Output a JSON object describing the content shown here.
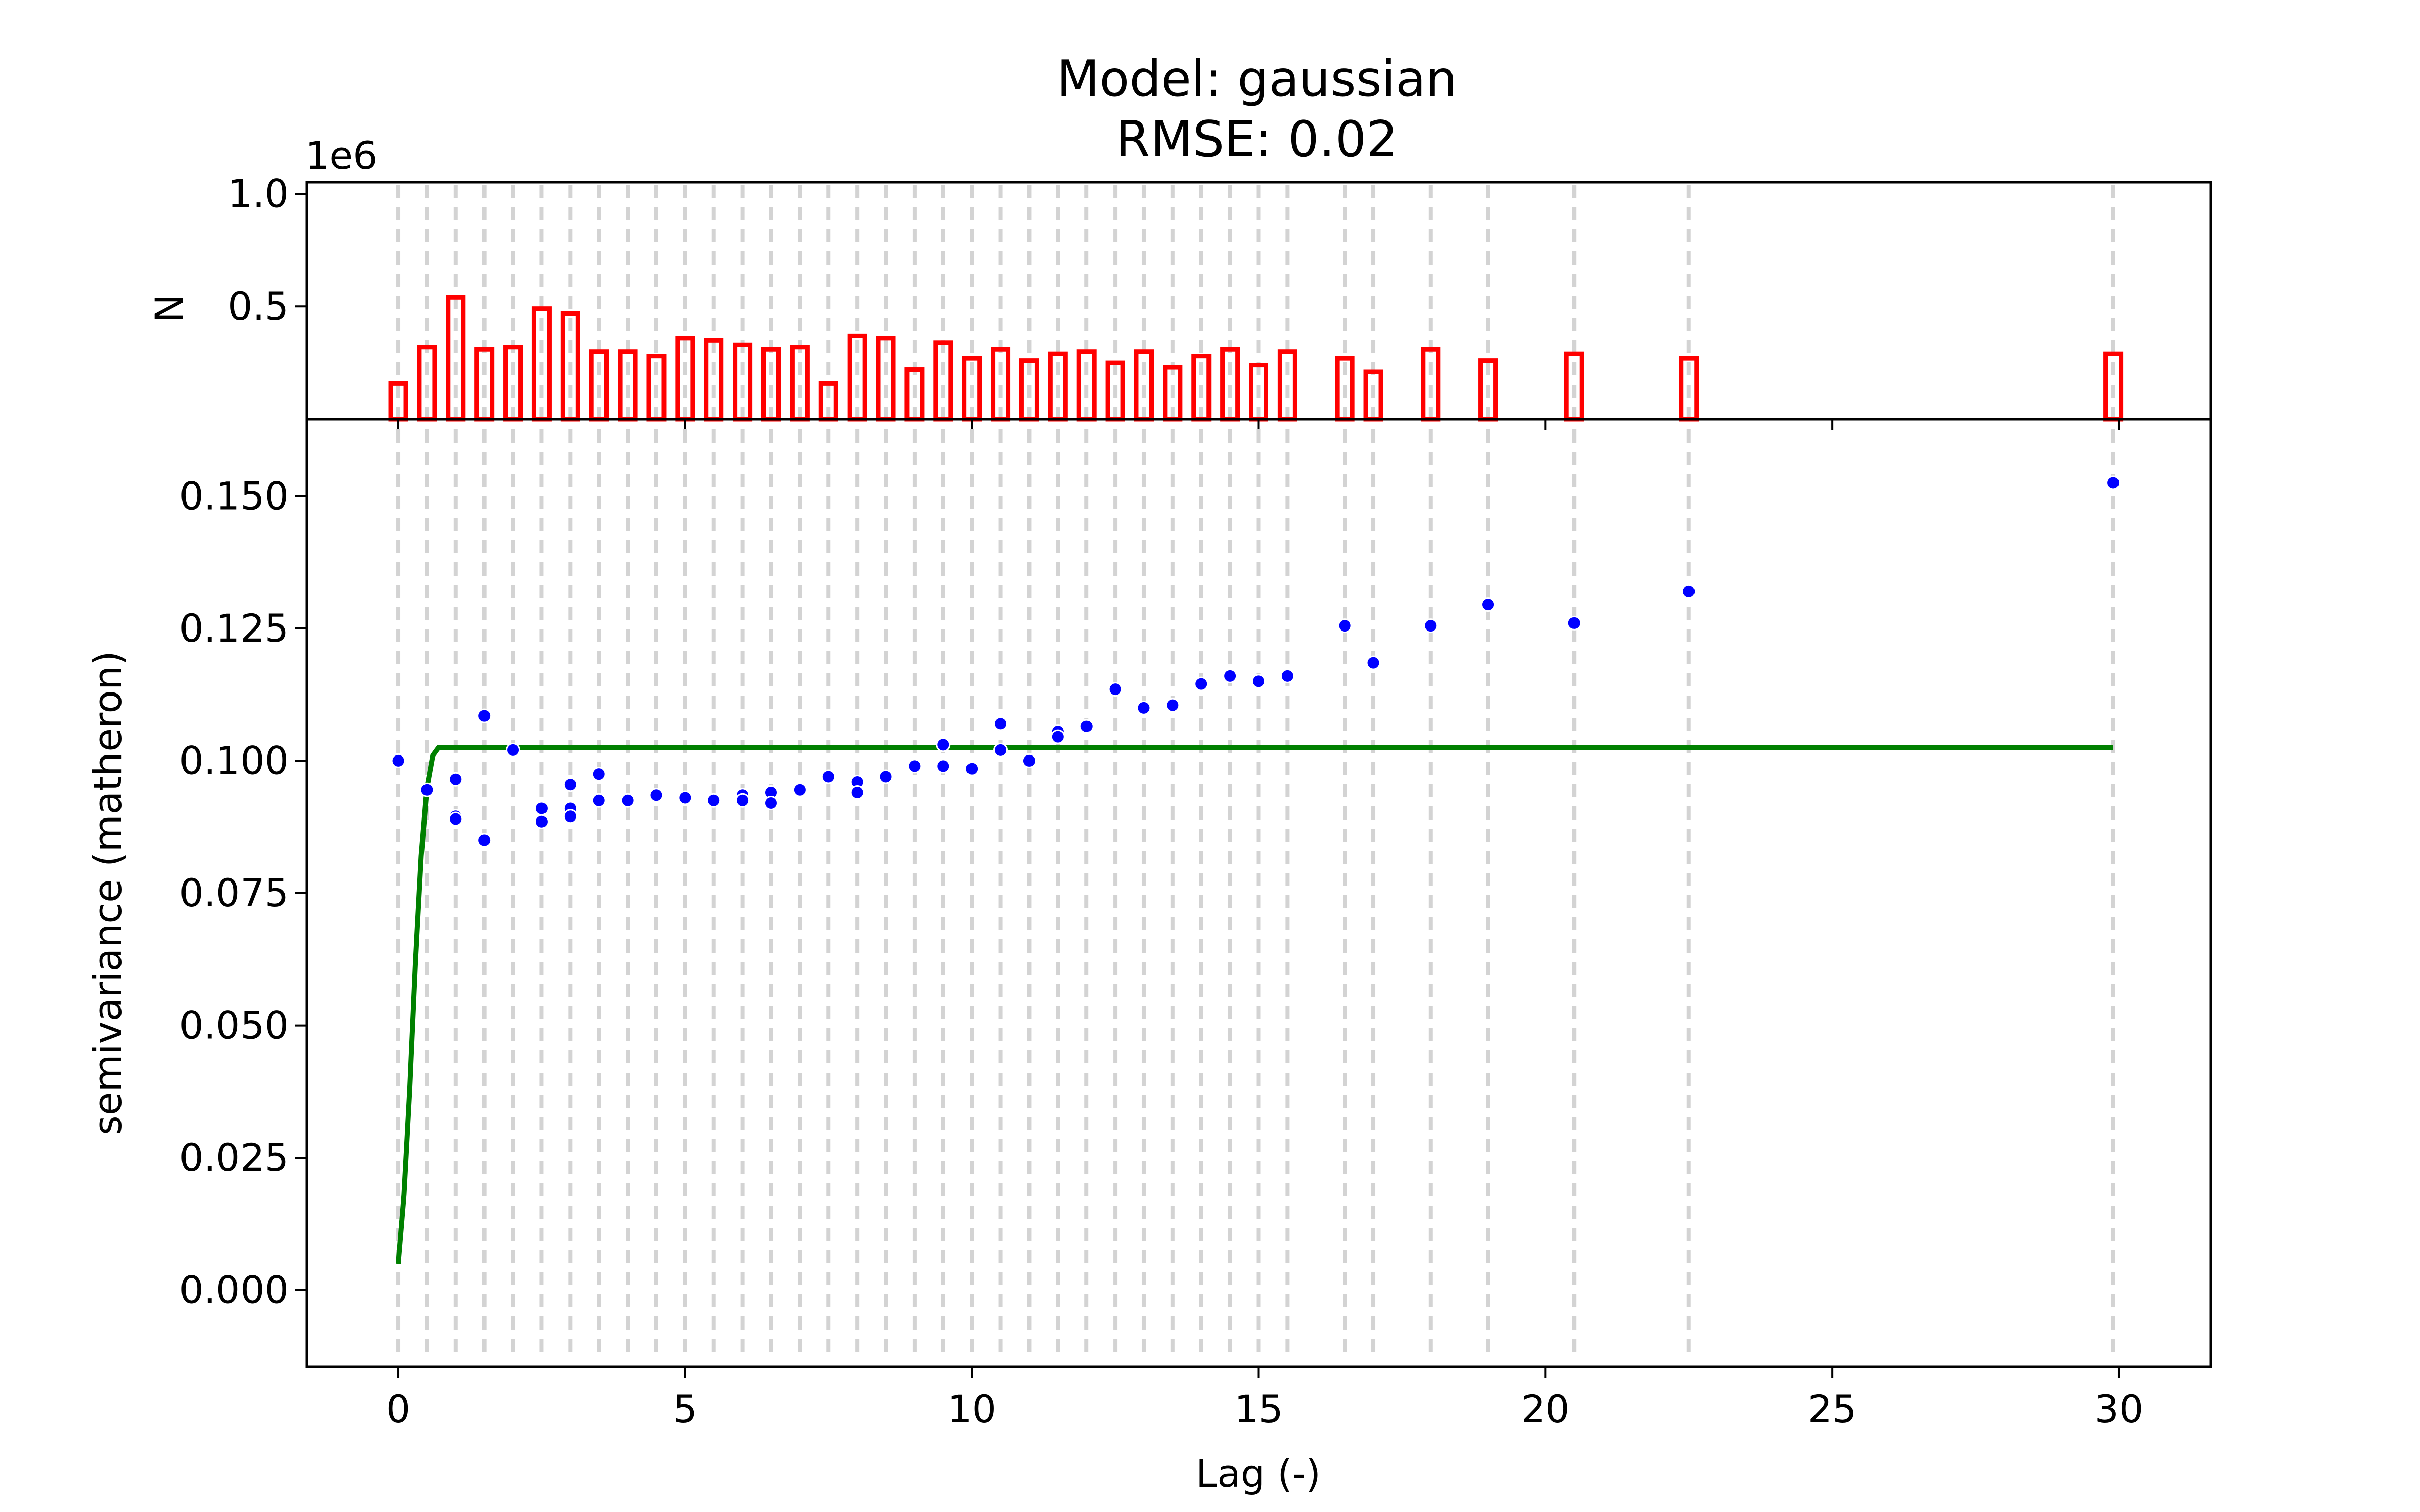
{
  "chart_data": {
    "type": "scatter",
    "title": "Model: gaussian",
    "subtitle": "RMSE: 0.02",
    "xlabel": "Lag (-)",
    "xlim": [
      -1.6,
      31.6
    ],
    "xticks": [
      0,
      5,
      10,
      15,
      20,
      25,
      30
    ],
    "histogram": {
      "ylabel": "N",
      "scale_label": "1e6",
      "ylim": [
        0,
        1.05
      ],
      "yticks": [
        0.5,
        1.0
      ],
      "bar_color": "#ff0000",
      "bins": [
        0.0,
        0.5,
        1.0,
        1.5,
        2.0,
        2.5,
        3.0,
        3.5,
        4.0,
        4.5,
        5.0,
        5.5,
        6.0,
        6.5,
        7.0,
        7.5,
        8.0,
        8.5,
        9.0,
        9.5,
        10.0,
        10.5,
        11.0,
        11.5,
        12.0,
        12.5,
        13.0,
        13.5,
        14.0,
        14.5,
        15.0,
        15.5,
        16.5,
        17.0,
        18.0,
        19.0,
        20.5,
        22.5,
        29.9
      ],
      "counts": [
        0.16,
        0.32,
        0.54,
        0.31,
        0.32,
        0.49,
        0.47,
        0.3,
        0.3,
        0.28,
        0.36,
        0.35,
        0.33,
        0.31,
        0.32,
        0.16,
        0.37,
        0.36,
        0.22,
        0.34,
        0.27,
        0.31,
        0.26,
        0.29,
        0.3,
        0.25,
        0.3,
        0.23,
        0.28,
        0.31,
        0.24,
        0.3,
        0.27,
        0.21,
        0.31,
        0.26,
        0.29,
        0.27,
        0.29
      ]
    },
    "variogram": {
      "ylabel": "semivariance (matheron)",
      "ylim": [
        -0.0145,
        0.1645
      ],
      "yticks": [
        0.0,
        0.025,
        0.05,
        0.075,
        0.1,
        0.125,
        0.15
      ],
      "ytick_labels": [
        "0.000",
        "0.025",
        "0.050",
        "0.075",
        "0.100",
        "0.125",
        "0.150"
      ],
      "point_color": "#0000ff",
      "model_color": "#008000",
      "grid_color": "#d3d3d3",
      "points": {
        "x": [
          0.0,
          0.5,
          1.0,
          1.0,
          1.0,
          1.5,
          1.5,
          2.0,
          2.5,
          2.5,
          3.0,
          3.0,
          3.0,
          3.5,
          3.5,
          4.0,
          4.5,
          5.0,
          5.5,
          6.0,
          6.0,
          6.5,
          6.5,
          7.0,
          7.5,
          8.0,
          8.0,
          8.5,
          9.0,
          9.5,
          9.5,
          10.0,
          10.5,
          10.5,
          11.0,
          11.5,
          11.5,
          12.0,
          12.5,
          13.0,
          13.5,
          14.0,
          14.5,
          15.0,
          15.5,
          16.5,
          17.0,
          18.0,
          19.0,
          20.5,
          22.5,
          29.9
        ],
        "y": [
          0.1,
          0.0945,
          0.0965,
          0.0895,
          0.089,
          0.1085,
          0.085,
          0.102,
          0.091,
          0.0885,
          0.0955,
          0.091,
          0.0895,
          0.0975,
          0.0925,
          0.0925,
          0.0935,
          0.093,
          0.0925,
          0.0935,
          0.0925,
          0.094,
          0.092,
          0.0945,
          0.097,
          0.096,
          0.094,
          0.097,
          0.099,
          0.103,
          0.099,
          0.0985,
          0.107,
          0.102,
          0.1,
          0.1055,
          0.1045,
          0.1065,
          0.1135,
          0.11,
          0.1105,
          0.1145,
          0.116,
          0.115,
          0.116,
          0.1255,
          0.1185,
          0.1255,
          0.1295,
          0.126,
          0.132,
          0.1525
        ]
      },
      "model": {
        "x": [
          0.0,
          0.1,
          0.2,
          0.3,
          0.4,
          0.5,
          0.6,
          0.7,
          0.8,
          0.9,
          29.9
        ],
        "y": [
          0.005,
          0.018,
          0.038,
          0.062,
          0.082,
          0.095,
          0.101,
          0.1025,
          0.1025,
          0.1025,
          0.1025
        ]
      }
    }
  }
}
